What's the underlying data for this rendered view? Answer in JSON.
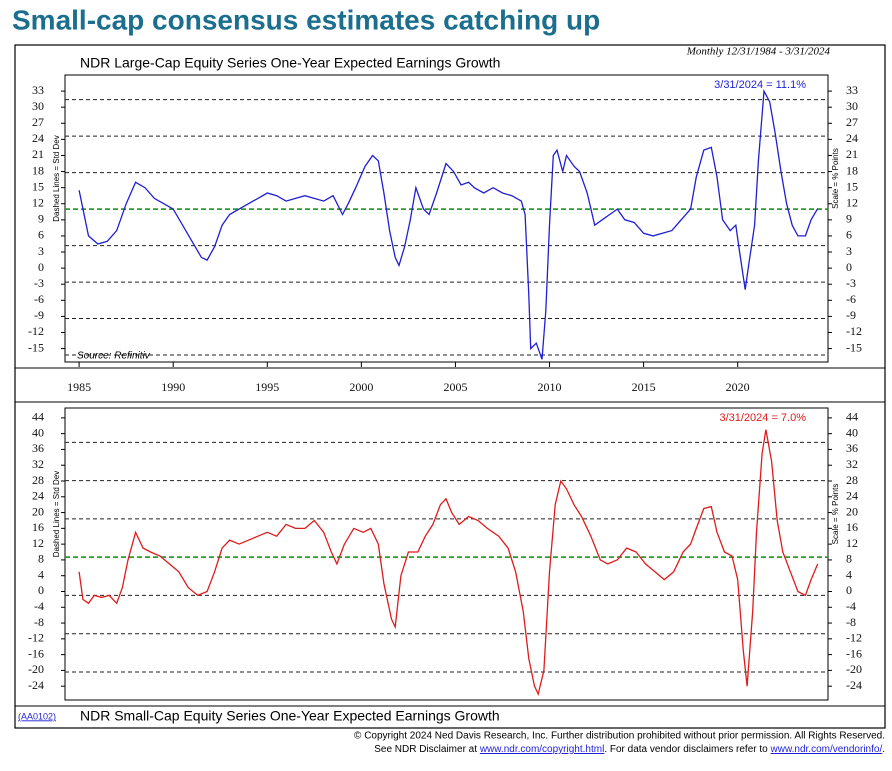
{
  "page": {
    "title": "Small-cap consensus estimates catching up",
    "date_range": "Monthly 12/31/1984 - 3/31/2024",
    "code": "(AA0102)",
    "footer_line1": "© Copyright 2024 Ned Davis Research, Inc.  Further distribution prohibited without prior permission.  All Rights Reserved.",
    "footer_see": "See NDR Disclaimer at ",
    "footer_link1": "www.ndr.com/copyright.html",
    "footer_mid": ". For data vendor disclaimers refer to ",
    "footer_link2": "www.ndr.com/vendorinfo/",
    "footer_end": "."
  },
  "chart_data": [
    {
      "type": "line",
      "title": "NDR Large-Cap Equity Series One-Year Expected Earnings Growth",
      "annotation": "3/31/2024 = 11.1%",
      "source": "Source: Refinitiv",
      "left_label": "Dashed Lines = Std Dev",
      "right_label": "Scale = % Points",
      "xlim": [
        1984.25,
        2024.8
      ],
      "xticks": [
        1985,
        1990,
        1995,
        2000,
        2005,
        2010,
        2015,
        2020
      ],
      "ylim": [
        -17.5,
        36
      ],
      "yticks": [
        33,
        30,
        27,
        24,
        21,
        18,
        15,
        12,
        9,
        6,
        3,
        0,
        -3,
        -6,
        -9,
        -12,
        -15
      ],
      "mean_line": 11,
      "sd_lines": [
        31.4,
        24.6,
        17.8,
        4.2,
        -2.6,
        -9.4,
        -16.2
      ],
      "mean_color": "#2e9a2e",
      "x": [
        1985.0,
        1985.5,
        1986.0,
        1986.5,
        1987.0,
        1987.5,
        1988.0,
        1988.5,
        1989.0,
        1989.5,
        1990.0,
        1990.5,
        1991.0,
        1991.5,
        1991.8,
        1992.2,
        1992.6,
        1993.0,
        1993.5,
        1994.0,
        1994.5,
        1995.0,
        1995.5,
        1996.0,
        1996.5,
        1997.0,
        1997.5,
        1998.0,
        1998.5,
        1999.0,
        1999.3,
        1999.7,
        2000.2,
        2000.6,
        2000.9,
        2001.2,
        2001.5,
        2001.8,
        2002.0,
        2002.3,
        2002.6,
        2002.9,
        2003.3,
        2003.6,
        2004.0,
        2004.5,
        2004.9,
        2005.3,
        2005.7,
        2006.0,
        2006.5,
        2007.0,
        2007.5,
        2008.0,
        2008.5,
        2008.7,
        2008.9,
        2009.0,
        2009.3,
        2009.6,
        2009.8,
        2010.0,
        2010.2,
        2010.4,
        2010.7,
        2010.9,
        2011.3,
        2011.6,
        2012.0,
        2012.4,
        2012.8,
        2013.2,
        2013.6,
        2014.0,
        2014.5,
        2015.0,
        2015.5,
        2016.0,
        2016.5,
        2017.0,
        2017.5,
        2017.8,
        2018.2,
        2018.6,
        2018.9,
        2019.2,
        2019.6,
        2019.9,
        2020.1,
        2020.4,
        2020.6,
        2020.9,
        2021.1,
        2021.4,
        2021.7,
        2022.0,
        2022.3,
        2022.6,
        2022.9,
        2023.2,
        2023.6,
        2023.9,
        2024.25
      ],
      "series": [
        {
          "name": "Large-Cap",
          "color": "#1f1fd6",
          "values": [
            14.5,
            6,
            4.5,
            5,
            7,
            12,
            16,
            15,
            13,
            12,
            11,
            8,
            5,
            2,
            1.5,
            4,
            8,
            10,
            11,
            12,
            13,
            14,
            13.5,
            12.5,
            13,
            13.5,
            13,
            12.5,
            13.5,
            10,
            12,
            15,
            19,
            21,
            20,
            14,
            7,
            2,
            0.5,
            4,
            9,
            15,
            11,
            10,
            14,
            19.5,
            18,
            15.5,
            16,
            15,
            14,
            15,
            14,
            13.5,
            12.5,
            10,
            -5,
            -15,
            -14,
            -17,
            -8,
            8,
            21,
            22,
            18,
            21,
            19,
            18,
            14,
            8,
            9,
            10,
            11,
            9,
            8.5,
            6.5,
            6,
            6.5,
            7,
            9,
            11,
            17,
            22,
            22.5,
            17,
            9,
            7,
            8,
            3,
            -4,
            1,
            8,
            20,
            33,
            31,
            25,
            18,
            12,
            8,
            6,
            6,
            9,
            11.1
          ]
        }
      ]
    },
    {
      "type": "line",
      "title": "NDR Small-Cap Equity Series One-Year Expected Earnings Growth",
      "annotation": "3/31/2024 = 7.0%",
      "left_label": "Dashed Lines = Std Dev",
      "right_label": "Scale = % Points",
      "xlim": [
        1984.25,
        2024.8
      ],
      "ylim": [
        -27.5,
        46.5
      ],
      "yticks": [
        44,
        40,
        36,
        32,
        28,
        24,
        20,
        16,
        12,
        8,
        4,
        0,
        -4,
        -8,
        -12,
        -16,
        -20,
        -24
      ],
      "mean_line": 8.7,
      "sd_lines": [
        37.8,
        28.1,
        18.4,
        -1,
        -10.7,
        -20.4
      ],
      "mean_color": "#2e9a2e",
      "x": [
        1985.0,
        1985.2,
        1985.5,
        1985.8,
        1986.2,
        1986.6,
        1987.0,
        1987.3,
        1987.6,
        1988.0,
        1988.4,
        1988.8,
        1989.3,
        1989.8,
        1990.3,
        1990.8,
        1991.3,
        1991.8,
        1992.2,
        1992.6,
        1993.0,
        1993.5,
        1994.0,
        1994.5,
        1995.0,
        1995.5,
        1996.0,
        1996.5,
        1997.0,
        1997.5,
        1998.0,
        1998.4,
        1998.7,
        1999.1,
        1999.6,
        2000.1,
        2000.5,
        2000.9,
        2001.2,
        2001.6,
        2001.8,
        2002.1,
        2002.5,
        2003.0,
        2003.4,
        2003.8,
        2004.2,
        2004.5,
        2004.8,
        2005.2,
        2005.7,
        2006.2,
        2006.7,
        2007.3,
        2007.8,
        2008.2,
        2008.6,
        2008.9,
        2009.2,
        2009.4,
        2009.7,
        2010.0,
        2010.3,
        2010.6,
        2010.9,
        2011.3,
        2011.7,
        2012.2,
        2012.7,
        2013.1,
        2013.6,
        2014.1,
        2014.6,
        2015.1,
        2015.6,
        2016.1,
        2016.6,
        2017.1,
        2017.5,
        2017.8,
        2018.2,
        2018.6,
        2018.9,
        2019.3,
        2019.7,
        2020.0,
        2020.3,
        2020.5,
        2020.8,
        2021.0,
        2021.3,
        2021.5,
        2021.8,
        2022.1,
        2022.4,
        2022.8,
        2023.2,
        2023.6,
        2023.9,
        2024.25
      ],
      "series": [
        {
          "name": "Small-Cap",
          "color": "#e01b1b",
          "values": [
            5,
            -2,
            -3,
            -1,
            -1.5,
            -1,
            -3,
            1,
            8,
            15,
            11,
            10,
            9,
            7,
            5,
            1,
            -1,
            0,
            5,
            11,
            13,
            12,
            13,
            14,
            15,
            14,
            17,
            16,
            16,
            18,
            15,
            10,
            7,
            12,
            16,
            15,
            16,
            12,
            2,
            -7,
            -9,
            4,
            10,
            10,
            14,
            17,
            22,
            23.5,
            20,
            17,
            19,
            18,
            16,
            14,
            11,
            5,
            -5,
            -17,
            -24,
            -26,
            -20,
            5,
            22,
            28,
            26,
            22,
            19,
            14,
            8,
            7,
            8,
            11,
            10,
            7,
            5,
            3,
            5,
            10,
            12,
            16,
            21,
            21.5,
            15,
            10,
            9,
            3,
            -15,
            -24,
            -5,
            15,
            35,
            41,
            33,
            18,
            10,
            5,
            0,
            -1,
            3,
            7
          ]
        }
      ]
    }
  ]
}
